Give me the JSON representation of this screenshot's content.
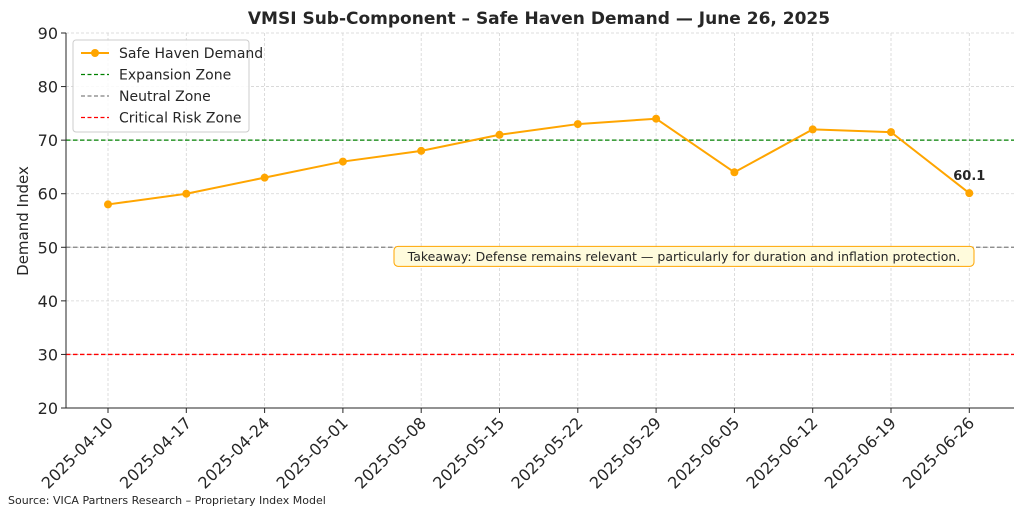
{
  "source": "Source: VICA Partners Research – Proprietary Index Model",
  "chart_data": {
    "type": "line",
    "title": "VMSI Sub-Component – Safe Haven Demand — June 26, 2025",
    "xlabel": "",
    "ylabel": "Demand Index",
    "ylim": [
      20,
      90
    ],
    "yticks": [
      20,
      30,
      40,
      50,
      60,
      70,
      80,
      90
    ],
    "grid": true,
    "legend_position": "top-left",
    "categories": [
      "2025-04-10",
      "2025-04-17",
      "2025-04-24",
      "2025-05-01",
      "2025-05-08",
      "2025-05-15",
      "2025-05-22",
      "2025-05-29",
      "2025-06-05",
      "2025-06-12",
      "2025-06-19",
      "2025-06-26"
    ],
    "series": [
      {
        "name": "Safe Haven Demand",
        "color": "#ffa500",
        "values": [
          58,
          60,
          63,
          66,
          68,
          71,
          73,
          74,
          64,
          72,
          71.5,
          60.1
        ]
      }
    ],
    "reference_lines": [
      {
        "name": "Expansion Zone",
        "value": 70,
        "color": "#008000"
      },
      {
        "name": "Neutral Zone",
        "value": 50,
        "color": "#808080"
      },
      {
        "name": "Critical Risk Zone",
        "value": 30,
        "color": "#ff0000"
      }
    ],
    "annotations": [
      {
        "label": "60.1",
        "category": "2025-06-26",
        "value": 60.1
      },
      {
        "label": "Takeaway: Defense remains relevant — particularly for duration and inflation protection.",
        "category": "2025-06-26",
        "value": 48.5,
        "box": true
      }
    ]
  }
}
